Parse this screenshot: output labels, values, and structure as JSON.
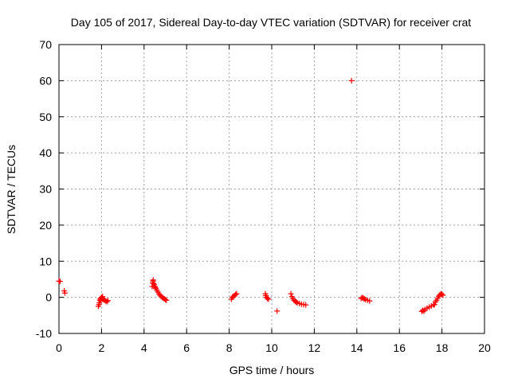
{
  "chart_data": {
    "type": "scatter",
    "title": "Day 105 of 2017, Sidereal Day-to-day VTEC variation (SDTVAR) for receiver crat",
    "xlabel": "GPS time / hours",
    "ylabel": "SDTVAR / TECUs",
    "xlim": [
      0,
      20
    ],
    "ylim": [
      -10,
      70
    ],
    "xticks": [
      0,
      2,
      4,
      6,
      8,
      10,
      12,
      14,
      16,
      18,
      20
    ],
    "yticks": [
      -10,
      0,
      10,
      20,
      30,
      40,
      50,
      60,
      70
    ],
    "grid": true,
    "marker": "+",
    "color": "#ff0000",
    "series": [
      {
        "name": "SDTVAR",
        "x": [
          0.0,
          0.05,
          0.25,
          0.28,
          1.85,
          1.88,
          1.9,
          1.93,
          1.95,
          1.98,
          2.0,
          2.03,
          2.06,
          2.1,
          2.15,
          2.2,
          2.25,
          2.3,
          2.05,
          1.97,
          4.38,
          4.4,
          4.42,
          4.45,
          4.48,
          4.5,
          4.55,
          4.6,
          4.65,
          4.7,
          4.75,
          4.8,
          4.85,
          4.9,
          4.95,
          5.0,
          5.05,
          4.43,
          4.52,
          8.1,
          8.15,
          8.2,
          8.25,
          8.3,
          8.35,
          9.7,
          9.72,
          9.75,
          9.8,
          9.85,
          10.25,
          10.9,
          10.95,
          11.0,
          11.05,
          11.1,
          11.15,
          11.2,
          11.3,
          11.4,
          11.5,
          11.6,
          13.75,
          14.2,
          14.25,
          14.3,
          14.35,
          14.4,
          14.5,
          14.6,
          17.05,
          17.1,
          17.15,
          17.2,
          17.3,
          17.4,
          17.5,
          17.6,
          17.65,
          17.7,
          17.75,
          17.8,
          17.85,
          17.9,
          17.95,
          18.0,
          18.05
        ],
        "y": [
          4.5,
          4.4,
          1.8,
          1.2,
          -2.5,
          -2.0,
          -1.5,
          -0.8,
          -0.5,
          -0.2,
          0.0,
          -0.3,
          -0.5,
          -0.6,
          -0.8,
          -1.0,
          -1.2,
          -0.9,
          0.2,
          -1.0,
          3.0,
          4.0,
          4.5,
          3.8,
          3.5,
          3.0,
          2.5,
          2.0,
          1.5,
          1.0,
          0.6,
          0.3,
          0.0,
          -0.2,
          -0.4,
          -0.6,
          -0.8,
          4.8,
          2.8,
          -0.5,
          0.0,
          0.3,
          0.5,
          0.8,
          1.0,
          1.0,
          0.5,
          0.0,
          -0.3,
          -0.5,
          -3.8,
          1.0,
          0.2,
          -0.4,
          -0.8,
          -1.1,
          -1.3,
          -1.5,
          -1.7,
          -1.9,
          -2.0,
          -2.1,
          60.0,
          -0.3,
          -0.1,
          -0.2,
          -0.4,
          -0.6,
          -0.8,
          -1.0,
          -3.9,
          -3.6,
          -3.8,
          -3.4,
          -3.0,
          -2.7,
          -2.4,
          -2.1,
          -2.0,
          -1.2,
          -0.8,
          -0.2,
          0.3,
          0.7,
          1.0,
          0.8,
          0.6
        ]
      }
    ]
  }
}
